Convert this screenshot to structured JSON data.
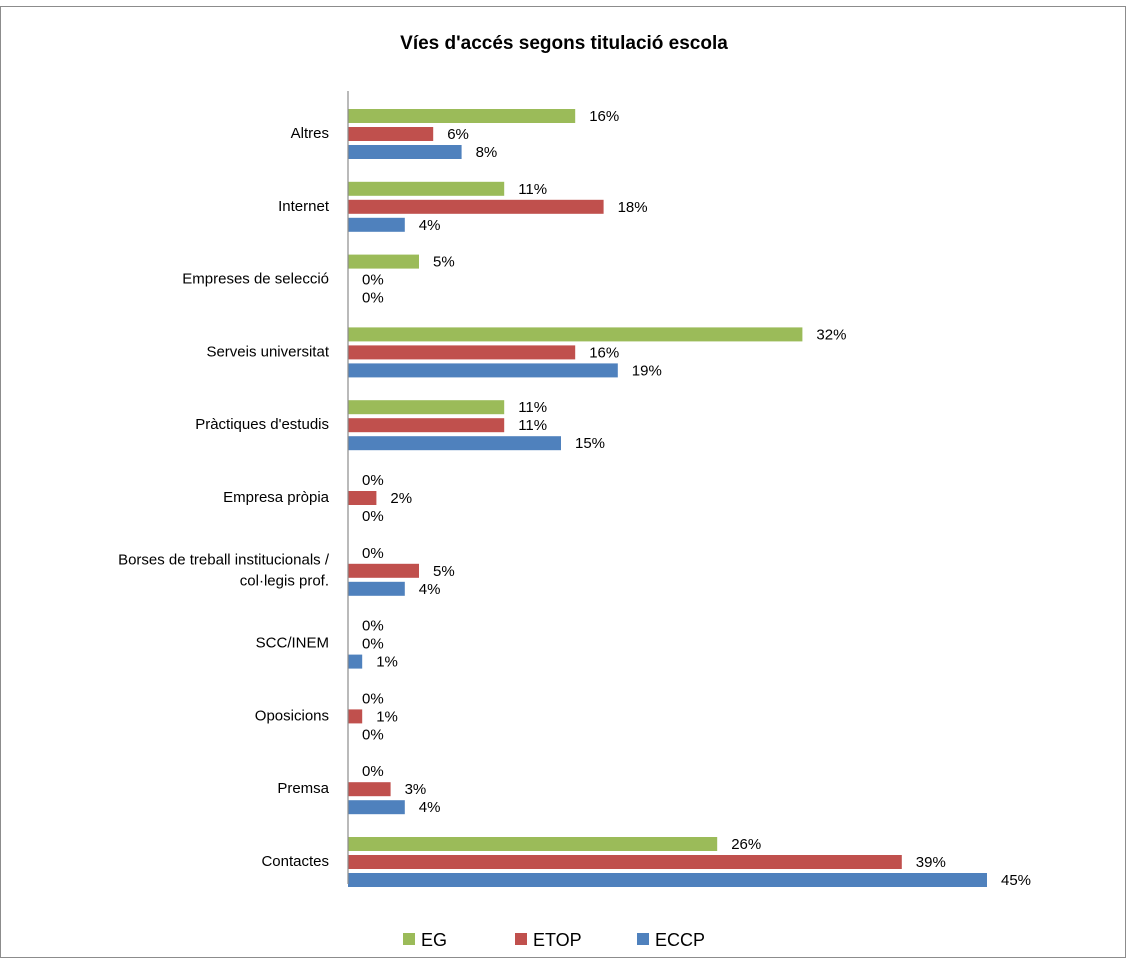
{
  "chart_data": {
    "type": "bar",
    "orientation": "horizontal",
    "title": "Víes d'accés segons titulació escola",
    "categories": [
      "Altres",
      "Internet",
      "Empreses de selecció",
      "Serveis universitat",
      "Pràctiques d'estudis",
      "Empresa pròpia",
      "Borses de treball institucionals / col·legis prof.",
      "SCC/INEM",
      "Oposicions",
      "Premsa",
      "Contactes"
    ],
    "category_lines": [
      [
        "Altres"
      ],
      [
        "Internet"
      ],
      [
        "Empreses de selecció"
      ],
      [
        "Serveis universitat"
      ],
      [
        "Pràctiques d'estudis"
      ],
      [
        "Empresa pròpia"
      ],
      [
        "Borses de treball institucionals /",
        "col·legis prof."
      ],
      [
        "SCC/INEM"
      ],
      [
        "Oposicions"
      ],
      [
        "Premsa"
      ],
      [
        "Contactes"
      ]
    ],
    "series": [
      {
        "name": "EG",
        "color": "#9bbb59",
        "values": [
          16,
          11,
          5,
          32,
          11,
          0,
          0,
          0,
          0,
          0,
          26
        ],
        "labels": [
          "16%",
          "11%",
          "5%",
          "32%",
          "11%",
          "0%",
          "0%",
          "0%",
          "0%",
          "0%",
          "26%"
        ]
      },
      {
        "name": "ETOP",
        "color": "#c0504d",
        "values": [
          6,
          18,
          0,
          16,
          11,
          2,
          5,
          0,
          1,
          3,
          39
        ],
        "labels": [
          "6%",
          "18%",
          "0%",
          "16%",
          "11%",
          "2%",
          "5%",
          "0%",
          "1%",
          "3%",
          "39%"
        ]
      },
      {
        "name": "ECCP",
        "color": "#4f81bd",
        "values": [
          8,
          4,
          0,
          19,
          15,
          0,
          4,
          1,
          0,
          4,
          45
        ],
        "labels": [
          "8%",
          "4%",
          "0%",
          "19%",
          "15%",
          "0%",
          "4%",
          "1%",
          "0%",
          "4%",
          "45%"
        ]
      }
    ],
    "xlim": [
      0,
      45
    ],
    "grid": false,
    "legend_position": "bottom"
  }
}
